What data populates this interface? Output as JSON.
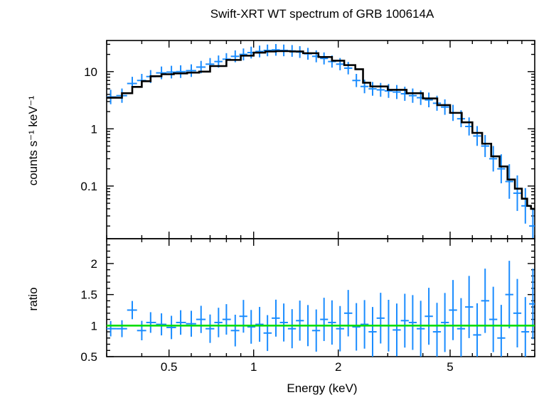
{
  "chart_data": [
    {
      "type": "scatter",
      "title": "Swift-XRT WT spectrum of GRB 100614A",
      "xlabel": "",
      "ylabel": "counts s⁻¹ keV⁻¹",
      "xscale": "log",
      "yscale": "log",
      "xlim": [
        0.3,
        10
      ],
      "ylim": [
        0.012,
        35
      ],
      "xticks": [
        0.5,
        1,
        2,
        5
      ],
      "yticks": [
        {
          "value": 0.1,
          "label": "0.1"
        },
        {
          "value": 1,
          "label": "1"
        },
        {
          "value": 10,
          "label": "10"
        }
      ],
      "series": [
        {
          "role": "data",
          "color": "#1a8cff",
          "x": [
            0.31,
            0.34,
            0.37,
            0.4,
            0.43,
            0.47,
            0.51,
            0.55,
            0.6,
            0.65,
            0.7,
            0.75,
            0.8,
            0.86,
            0.92,
            0.98,
            1.05,
            1.12,
            1.2,
            1.28,
            1.37,
            1.46,
            1.56,
            1.67,
            1.78,
            1.9,
            2.03,
            2.17,
            2.32,
            2.48,
            2.65,
            2.83,
            3.02,
            3.23,
            3.45,
            3.68,
            3.93,
            4.2,
            4.49,
            4.79,
            5.12,
            5.47,
            5.84,
            6.24,
            6.66,
            7.12,
            7.6,
            8.12,
            8.67,
            9.26,
            9.85
          ],
          "y": [
            3.6,
            3.8,
            6.2,
            7.0,
            8.2,
            9.5,
            9.8,
            10.0,
            10.4,
            12.0,
            13.5,
            15.0,
            16.5,
            18.5,
            20.0,
            21.5,
            22.5,
            23.5,
            24.0,
            23.5,
            23.0,
            22.0,
            20.5,
            18.5,
            17.0,
            15.0,
            13.5,
            11.5,
            7.0,
            5.5,
            5.0,
            4.8,
            4.6,
            4.4,
            4.1,
            3.8,
            3.5,
            3.2,
            2.8,
            2.4,
            1.9,
            1.5,
            1.1,
            0.75,
            0.5,
            0.3,
            0.2,
            0.12,
            0.075,
            0.045,
            0.02
          ]
        },
        {
          "role": "model",
          "color": "#000000",
          "x": [
            0.3,
            0.34,
            0.37,
            0.4,
            0.43,
            0.47,
            0.52,
            0.58,
            0.64,
            0.7,
            0.8,
            0.9,
            1.0,
            1.1,
            1.2,
            1.35,
            1.5,
            1.7,
            1.9,
            2.1,
            2.3,
            2.45,
            2.6,
            3.0,
            3.5,
            4.0,
            4.5,
            5.0,
            5.5,
            6.0,
            6.5,
            7.0,
            7.5,
            8.0,
            8.5,
            9.0,
            9.4,
            9.7,
            10.0
          ],
          "y": [
            3.5,
            4.2,
            5.4,
            6.8,
            8.3,
            9.0,
            9.3,
            9.6,
            10.0,
            12.5,
            16.0,
            19.0,
            21.5,
            22.5,
            22.8,
            22.5,
            21.0,
            18.0,
            15.5,
            13.0,
            11.0,
            6.4,
            5.5,
            4.8,
            4.2,
            3.4,
            2.6,
            1.9,
            1.3,
            0.85,
            0.55,
            0.33,
            0.22,
            0.13,
            0.09,
            0.06,
            0.045,
            0.04,
            0.038
          ]
        }
      ]
    },
    {
      "type": "scatter",
      "title": "",
      "xlabel": "Energy (keV)",
      "ylabel": "ratio",
      "xscale": "log",
      "yscale": "linear",
      "xlim": [
        0.3,
        10
      ],
      "ylim": [
        0.5,
        2.4
      ],
      "xticks": [
        {
          "value": 0.5,
          "label": "0.5"
        },
        {
          "value": 1,
          "label": "1"
        },
        {
          "value": 2,
          "label": "2"
        },
        {
          "value": 5,
          "label": "5"
        }
      ],
      "yticks": [
        {
          "value": 0.5,
          "label": "0.5"
        },
        {
          "value": 1,
          "label": "1"
        },
        {
          "value": 1.5,
          "label": "1.5"
        },
        {
          "value": 2,
          "label": "2"
        }
      ],
      "reference_line": {
        "y": 1,
        "color": "#00dd00"
      },
      "series": [
        {
          "role": "data",
          "color": "#1a8cff",
          "x": [
            0.31,
            0.34,
            0.37,
            0.4,
            0.43,
            0.47,
            0.51,
            0.55,
            0.6,
            0.65,
            0.7,
            0.75,
            0.8,
            0.86,
            0.92,
            0.98,
            1.05,
            1.12,
            1.2,
            1.28,
            1.37,
            1.46,
            1.56,
            1.67,
            1.78,
            1.9,
            2.03,
            2.17,
            2.32,
            2.48,
            2.65,
            2.83,
            3.02,
            3.23,
            3.45,
            3.68,
            3.93,
            4.2,
            4.49,
            4.79,
            5.12,
            5.47,
            5.84,
            6.24,
            6.66,
            7.12,
            7.6,
            8.12,
            8.67,
            9.26,
            9.85
          ],
          "y": [
            0.95,
            0.95,
            1.25,
            0.92,
            1.05,
            1.02,
            0.97,
            1.05,
            1.03,
            1.1,
            0.95,
            1.05,
            1.1,
            0.92,
            1.15,
            0.98,
            1.02,
            0.88,
            1.12,
            1.05,
            0.95,
            1.08,
            1.0,
            0.92,
            1.1,
            1.05,
            0.95,
            1.2,
            0.98,
            1.02,
            0.9,
            1.12,
            1.0,
            0.93,
            1.08,
            1.05,
            0.95,
            1.15,
            0.9,
            1.05,
            1.25,
            0.95,
            1.3,
            0.85,
            1.4,
            1.1,
            0.8,
            1.5,
            1.2,
            0.9,
            1.35
          ]
        }
      ]
    }
  ]
}
